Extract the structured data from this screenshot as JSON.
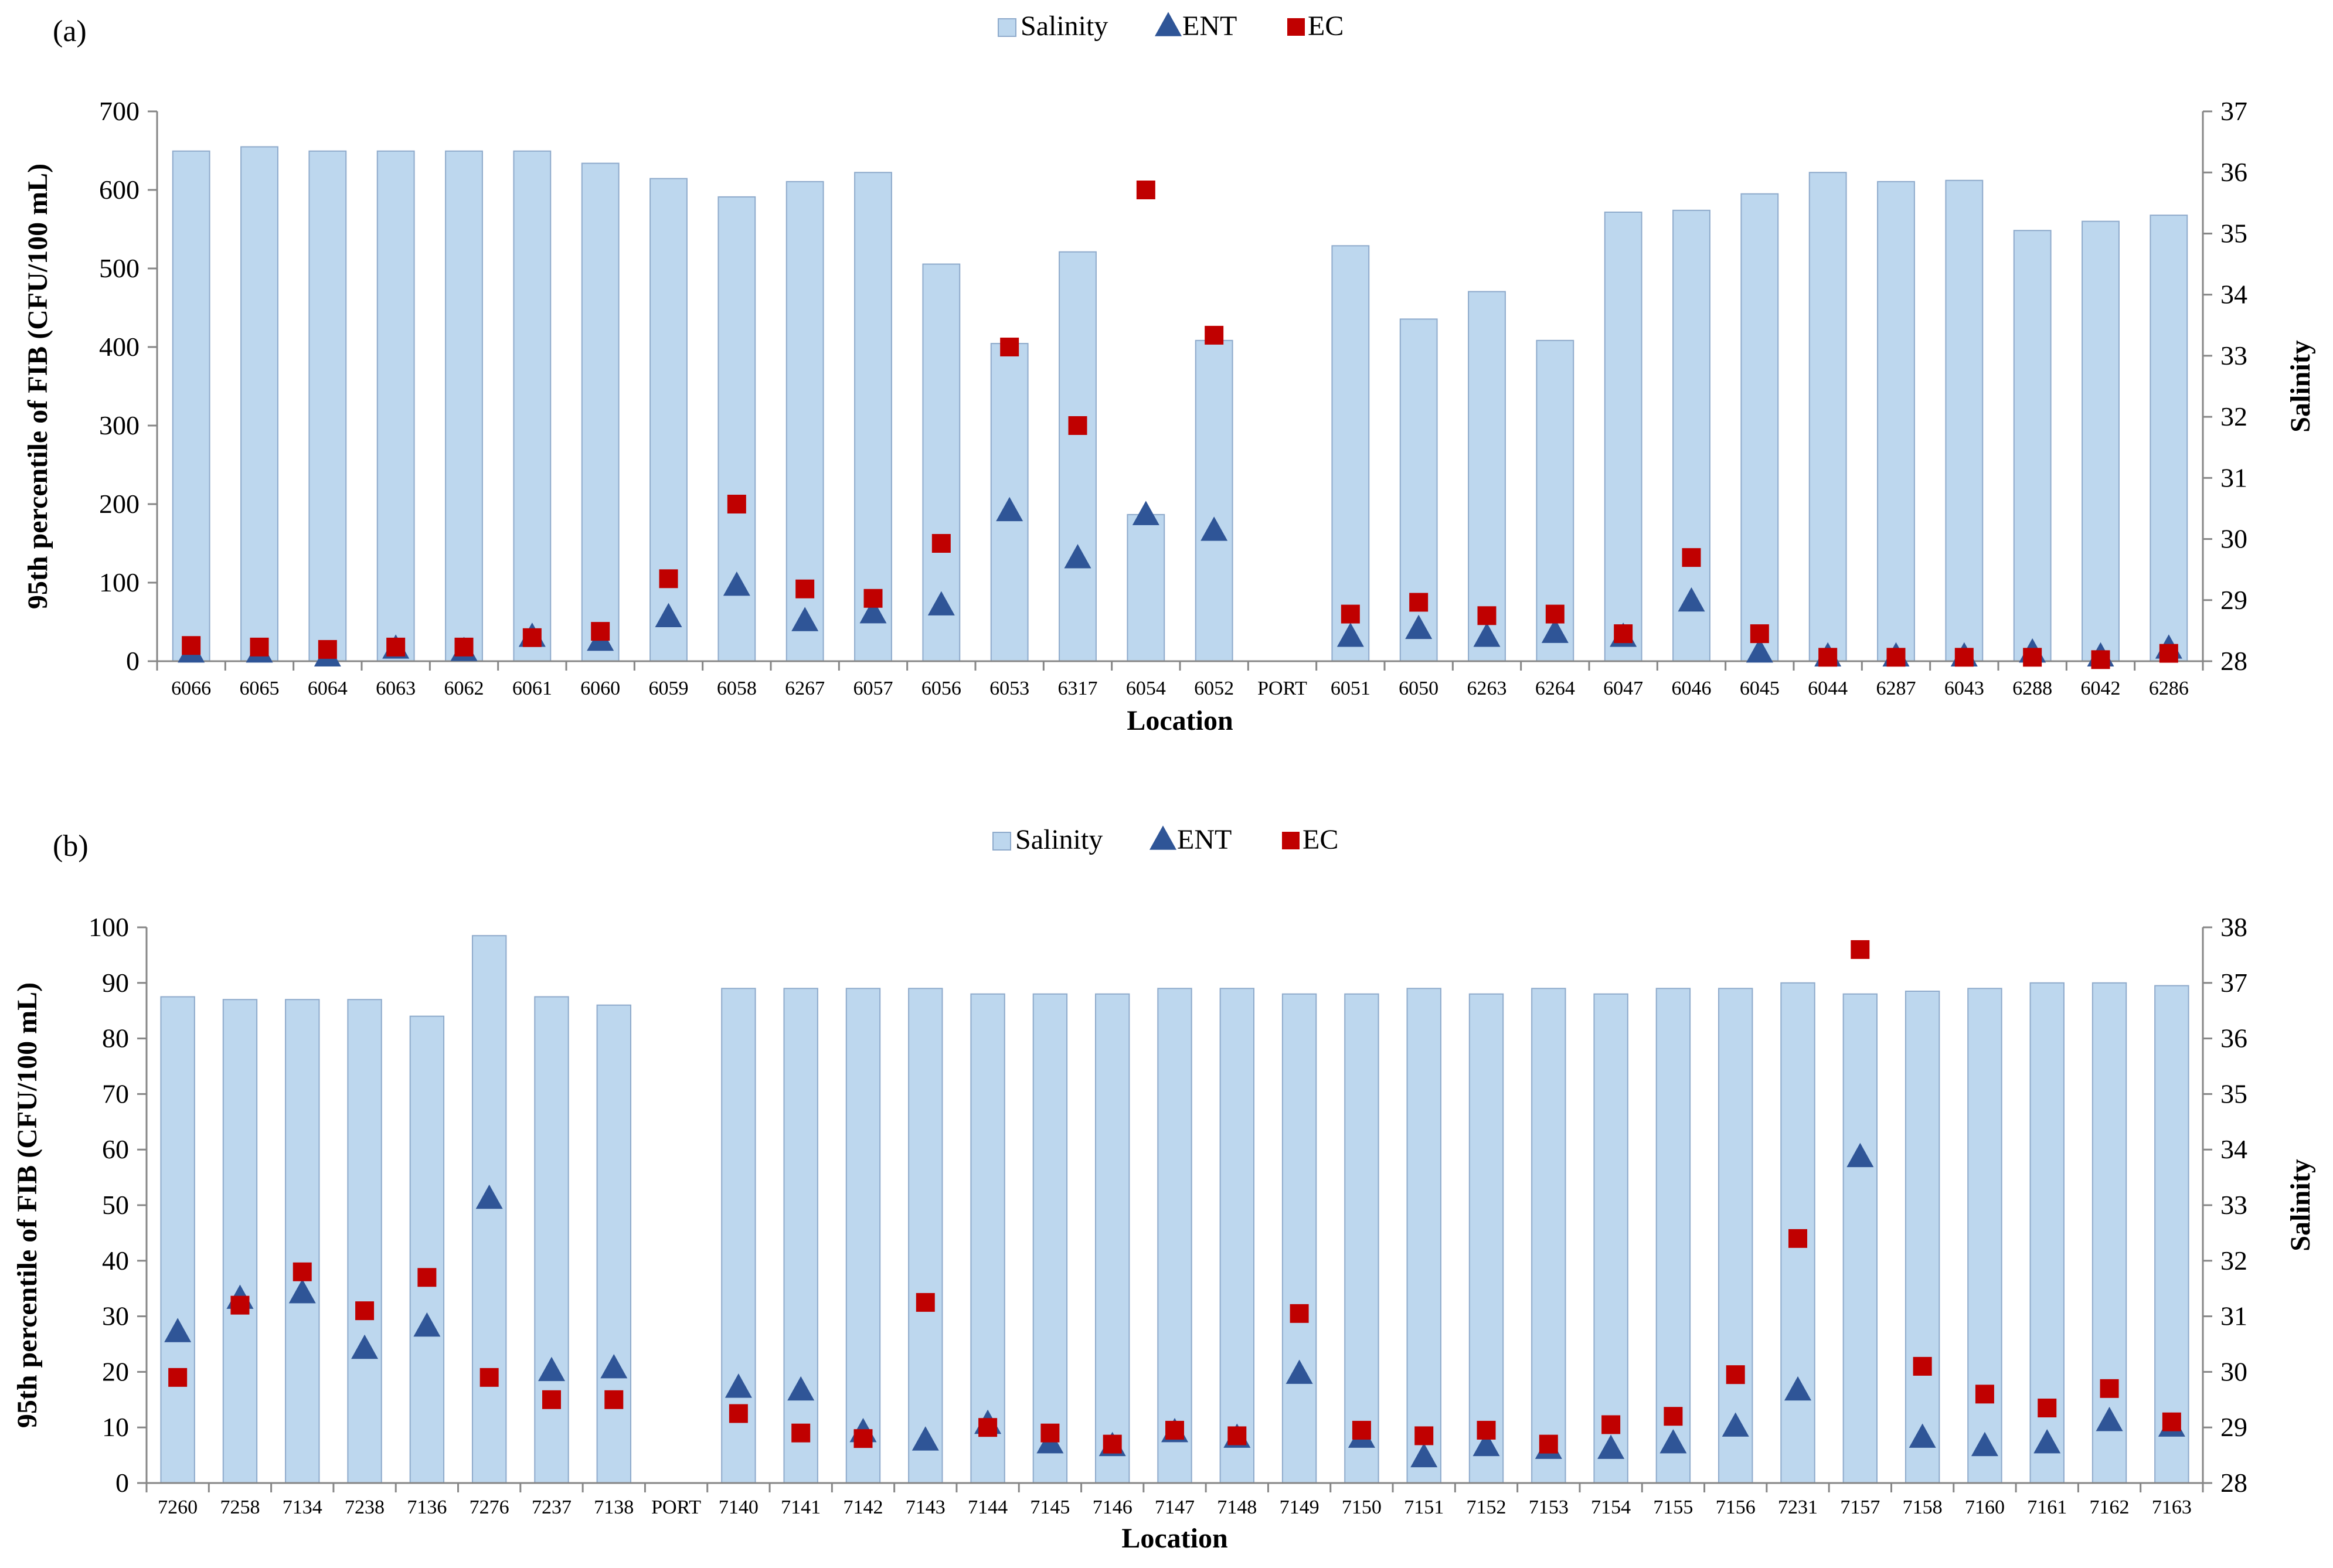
{
  "colors": {
    "salinity_fill": "#bdd7ee",
    "salinity_stroke": "#8eaacb",
    "ent": "#2f5597",
    "ec": "#c00000",
    "axis": "#868686"
  },
  "chart_data": [
    {
      "panel_label": "(a)",
      "type": "bar",
      "legend": {
        "position": "top-center",
        "entries": [
          "Salinity",
          "ENT",
          "EC"
        ]
      },
      "xlabel": "Location",
      "ylabel": "95th percentile of FIB (CFU/100 mL)",
      "y2label": "Salinity",
      "ylim": [
        0,
        700
      ],
      "y_ticks": [
        0,
        100,
        200,
        300,
        400,
        500,
        600,
        700
      ],
      "y2lim": [
        28,
        37
      ],
      "y2_ticks": [
        28,
        29,
        30,
        31,
        32,
        33,
        34,
        35,
        36,
        37
      ],
      "grid": false,
      "categories": [
        "6066",
        "6065",
        "6064",
        "6063",
        "6062",
        "6061",
        "6060",
        "6059",
        "6058",
        "6267",
        "6057",
        "6056",
        "6053",
        "6317",
        "6054",
        "6052",
        "PORT",
        "6051",
        "6050",
        "6263",
        "6264",
        "6047",
        "6046",
        "6045",
        "6044",
        "6287",
        "6043",
        "6288",
        "6042",
        "6286"
      ],
      "series": [
        {
          "name": "Salinity",
          "kind": "bar",
          "axis": "right",
          "values": [
            36.35,
            36.42,
            36.35,
            36.35,
            36.35,
            36.35,
            36.15,
            35.9,
            35.6,
            35.85,
            36.0,
            34.5,
            33.2,
            34.7,
            30.4,
            33.25,
            null,
            34.8,
            33.6,
            34.05,
            33.25,
            35.35,
            35.38,
            35.65,
            36.0,
            35.85,
            35.87,
            35.05,
            35.2,
            35.3
          ]
        },
        {
          "name": "ENT",
          "kind": "triangle",
          "axis": "left",
          "values": [
            10,
            10,
            5,
            15,
            12,
            30,
            25,
            55,
            95,
            50,
            60,
            70,
            190,
            130,
            185,
            165,
            null,
            30,
            40,
            30,
            35,
            30,
            75,
            10,
            5,
            5,
            5,
            10,
            5,
            15
          ]
        },
        {
          "name": "EC",
          "kind": "square",
          "axis": "left",
          "values": [
            20,
            18,
            15,
            18,
            18,
            30,
            38,
            105,
            200,
            92,
            80,
            150,
            400,
            300,
            600,
            415,
            null,
            60,
            75,
            58,
            60,
            35,
            132,
            35,
            5,
            5,
            5,
            5,
            2,
            10
          ]
        }
      ]
    },
    {
      "panel_label": "(b)",
      "type": "bar",
      "legend": {
        "position": "top-center",
        "entries": [
          "Salinity",
          "ENT",
          "EC"
        ]
      },
      "xlabel": "Location",
      "ylabel": "95th percentile of FIB (CFU/100 mL)",
      "y2label": "Salinity",
      "ylim": [
        0,
        100
      ],
      "y_ticks": [
        0,
        10,
        20,
        30,
        40,
        50,
        60,
        70,
        80,
        90,
        100
      ],
      "y2lim": [
        28,
        38
      ],
      "y2_ticks": [
        28,
        29,
        30,
        31,
        32,
        33,
        34,
        35,
        36,
        37,
        38
      ],
      "grid": false,
      "categories": [
        "7260",
        "7258",
        "7134",
        "7238",
        "7136",
        "7276",
        "7237",
        "7138",
        "PORT",
        "7140",
        "7141",
        "7142",
        "7143",
        "7144",
        "7145",
        "7146",
        "7147",
        "7148",
        "7149",
        "7150",
        "7151",
        "7152",
        "7153",
        "7154",
        "7155",
        "7156",
        "7231",
        "7157",
        "7158",
        "7160",
        "7161",
        "7162",
        "7163"
      ],
      "series": [
        {
          "name": "Salinity",
          "kind": "bar",
          "axis": "right",
          "values": [
            36.75,
            36.7,
            36.7,
            36.7,
            36.4,
            37.85,
            36.75,
            36.6,
            null,
            36.9,
            36.9,
            36.9,
            36.9,
            36.8,
            36.8,
            36.8,
            36.9,
            36.9,
            36.8,
            36.8,
            36.9,
            36.8,
            36.9,
            36.8,
            36.9,
            36.9,
            37.0,
            36.8,
            36.85,
            36.9,
            37.0,
            37.0,
            36.95
          ]
        },
        {
          "name": "ENT",
          "kind": "triangle",
          "axis": "left",
          "values": [
            27,
            33,
            34,
            24,
            28,
            51,
            20,
            20.5,
            null,
            17,
            16.5,
            9,
            7.5,
            10.5,
            7,
            6.5,
            9,
            8,
            19.5,
            8,
            4.5,
            6.5,
            6,
            6,
            7,
            10,
            16.5,
            58.5,
            8,
            6.5,
            7,
            11,
            10
          ]
        },
        {
          "name": "EC",
          "kind": "square",
          "axis": "left",
          "values": [
            19,
            32,
            38,
            31,
            37,
            19,
            15,
            15,
            null,
            12.5,
            9,
            8,
            32.5,
            10,
            9,
            7,
            9.5,
            8.5,
            30.5,
            9.5,
            8.5,
            9.5,
            7,
            10.5,
            12,
            19.5,
            44,
            96,
            21,
            16,
            13.5,
            17,
            11
          ]
        }
      ]
    }
  ]
}
